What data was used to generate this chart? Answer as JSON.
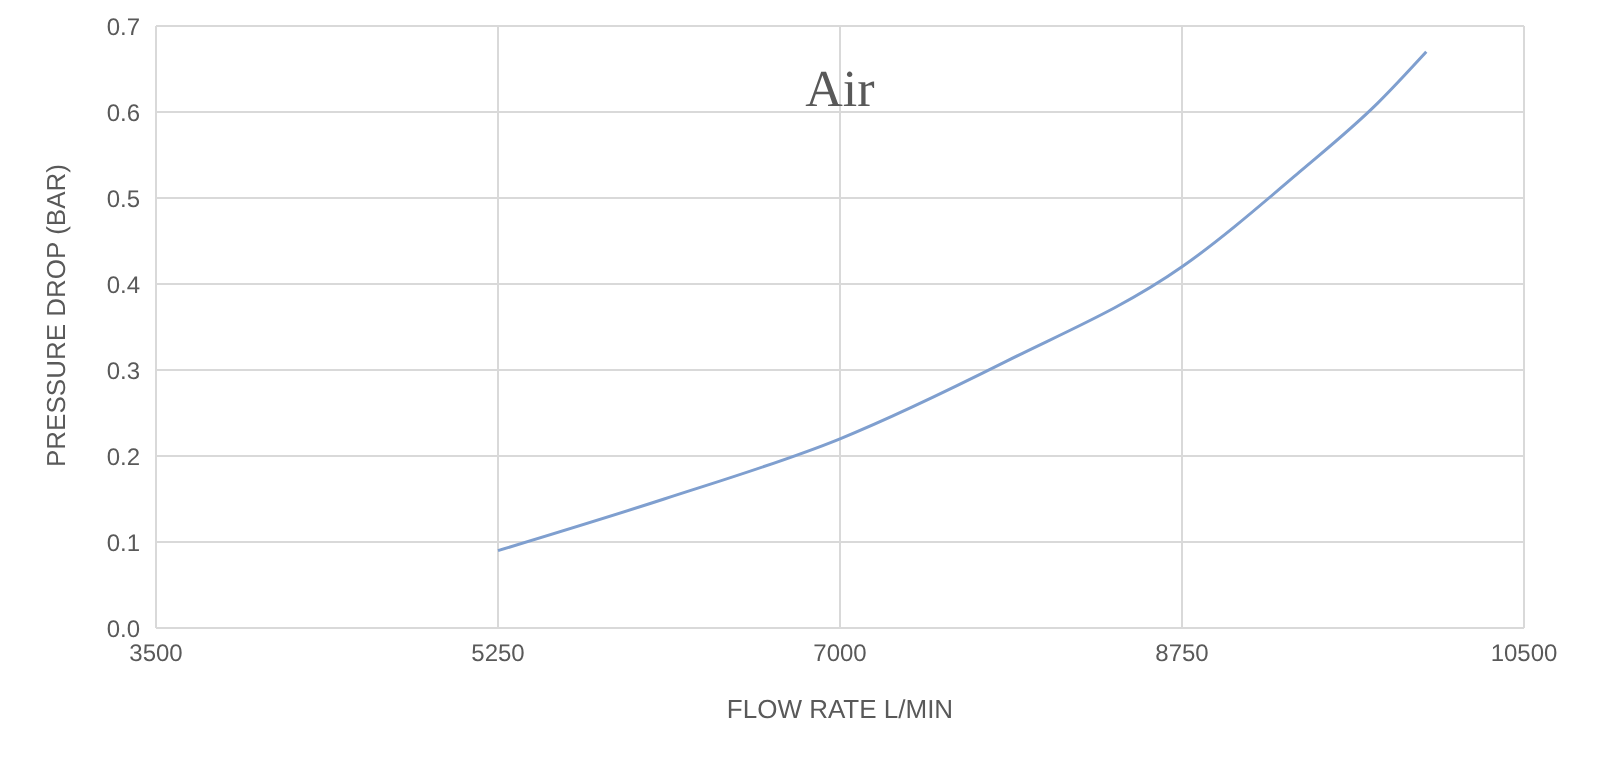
{
  "chart_data": {
    "type": "line",
    "title": "Air",
    "xlabel": "FLOW RATE L/MIN",
    "ylabel": "PRESSURE DROP (BAR)",
    "x": [
      5250,
      6100,
      7000,
      7850,
      8750,
      9350,
      9750,
      10000
    ],
    "series": [
      {
        "color": "#7f9fcf",
        "values": [
          0.09,
          0.15,
          0.22,
          0.31,
          0.42,
          0.53,
          0.61,
          0.67
        ]
      }
    ],
    "xlim": [
      3500,
      10500
    ],
    "xticks": [
      3500,
      5250,
      7000,
      8750,
      10500
    ],
    "ylim": [
      0,
      0.7
    ],
    "yticks": [
      {
        "value": 0,
        "label": "0.0"
      },
      0.1,
      0.2,
      0.3,
      0.4,
      0.5,
      0.6,
      0.7
    ],
    "grid": true,
    "legend": false,
    "marker": "none",
    "line_style": "solid"
  }
}
